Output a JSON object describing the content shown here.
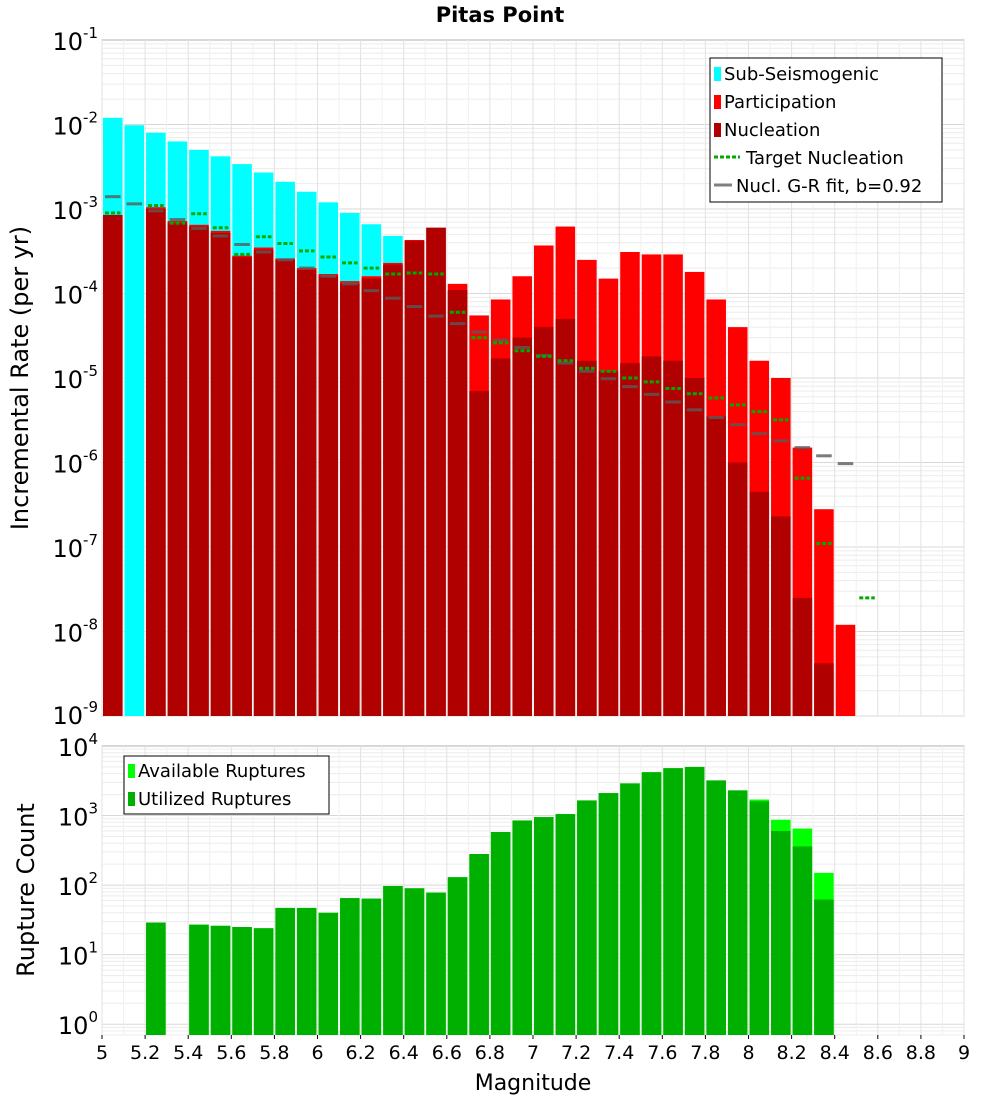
{
  "chart_data": [
    {
      "type": "bar",
      "title": "Pitas Point",
      "ylabel": "Incremental Rate (per yr)",
      "xlabel": "",
      "y_scale": "log",
      "ylim": [
        1e-09,
        0.1
      ],
      "xlim": [
        5,
        9
      ],
      "y_tick_labels": [
        {
          "base": "10",
          "exp": "-9"
        },
        {
          "base": "10",
          "exp": "-8"
        },
        {
          "base": "10",
          "exp": "-7"
        },
        {
          "base": "10",
          "exp": "-6"
        },
        {
          "base": "10",
          "exp": "-5"
        },
        {
          "base": "10",
          "exp": "-4"
        },
        {
          "base": "10",
          "exp": "-3"
        },
        {
          "base": "10",
          "exp": "-2"
        },
        {
          "base": "10",
          "exp": "-1"
        }
      ],
      "grid": true,
      "legend_position": "top-right",
      "series": [
        {
          "name": "Sub-Seismogenic",
          "color": "#00ffff",
          "x": [
            5.05,
            5.15,
            5.25,
            5.35,
            5.45,
            5.55,
            5.65,
            5.75,
            5.85,
            5.95,
            6.05,
            6.15,
            6.25,
            6.35
          ],
          "values": [
            0.012,
            0.0098,
            0.008,
            0.0063,
            0.005,
            0.0042,
            0.0034,
            0.0027,
            0.0021,
            0.0016,
            0.0012,
            0.0009,
            0.00066,
            0.00048
          ]
        },
        {
          "name": "Participation",
          "color": "#ff0000",
          "x": [
            5.05,
            5.25,
            5.35,
            5.45,
            5.55,
            5.65,
            5.75,
            5.85,
            5.95,
            6.05,
            6.15,
            6.25,
            6.35,
            6.45,
            6.55,
            6.65,
            6.75,
            6.85,
            6.95,
            7.05,
            7.15,
            7.25,
            7.35,
            7.45,
            7.55,
            7.65,
            7.75,
            7.85,
            7.95,
            8.05,
            8.15,
            8.25,
            8.35,
            8.45
          ],
          "values": [
            0.00085,
            0.00105,
            0.00072,
            0.00065,
            0.00055,
            0.00028,
            0.00035,
            0.00026,
            0.0002,
            0.00017,
            0.00014,
            0.00016,
            0.00023,
            0.00043,
            0.0006,
            0.00013,
            5.5e-05,
            8.5e-05,
            0.00016,
            0.00037,
            0.00062,
            0.00025,
            0.00015,
            0.00031,
            0.00029,
            0.00029,
            0.00018,
            8.5e-05,
            4e-05,
            1.6e-05,
            1e-05,
            1.5e-06,
            2.8e-07,
            1.2e-08
          ]
        },
        {
          "name": "Nucleation",
          "color": "#b00000",
          "x": [
            5.05,
            5.25,
            5.35,
            5.45,
            5.55,
            5.65,
            5.75,
            5.85,
            5.95,
            6.05,
            6.15,
            6.25,
            6.35,
            6.45,
            6.55,
            6.65,
            6.75,
            6.85,
            6.95,
            7.05,
            7.15,
            7.25,
            7.35,
            7.45,
            7.55,
            7.65,
            7.75,
            7.85,
            7.95,
            8.05,
            8.15,
            8.25,
            8.35
          ],
          "values": [
            0.00085,
            0.001,
            0.00068,
            0.00062,
            0.00052,
            0.00027,
            0.00033,
            0.00025,
            0.00019,
            0.00016,
            0.00013,
            0.00015,
            0.00022,
            0.00042,
            0.0006,
            0.00011,
            7e-06,
            1.7e-05,
            3e-05,
            4e-05,
            5e-05,
            1.6e-05,
            1.2e-05,
            1.5e-05,
            1.8e-05,
            1.6e-05,
            1e-05,
            3.5e-06,
            1e-06,
            4.5e-07,
            2.3e-07,
            2.5e-08,
            4.2e-09
          ]
        },
        {
          "name": "Target Nucleation",
          "color": "#00aa00",
          "style": "dotted",
          "x": [
            5.05,
            5.25,
            5.35,
            5.45,
            5.55,
            5.65,
            5.75,
            5.85,
            5.95,
            6.05,
            6.15,
            6.25,
            6.35,
            6.45,
            6.55,
            6.65,
            6.75,
            6.85,
            6.95,
            7.05,
            7.15,
            7.25,
            7.35,
            7.45,
            7.55,
            7.65,
            7.75,
            7.85,
            7.95,
            8.05,
            8.15,
            8.25,
            8.35,
            8.55
          ],
          "values": [
            0.0009,
            0.0011,
            0.00068,
            0.00088,
            0.0006,
            0.00029,
            0.00047,
            0.00039,
            0.00032,
            0.00027,
            0.00023,
            0.0002,
            0.00017,
            0.000175,
            0.00017,
            6e-05,
            3e-05,
            2.6e-05,
            2.1e-05,
            1.8e-05,
            1.6e-05,
            1.3e-05,
            1.2e-05,
            1e-05,
            9e-06,
            7.5e-06,
            6.5e-06,
            5.8e-06,
            4.8e-06,
            4e-06,
            3.2e-06,
            6.5e-07,
            1.1e-07,
            2.5e-08
          ]
        },
        {
          "name": "Nucl. G-R fit, b=0.92",
          "color": "#808080",
          "style": "steps",
          "x": [
            5.05,
            5.15,
            5.25,
            5.35,
            5.45,
            5.55,
            5.65,
            5.75,
            5.85,
            5.95,
            6.05,
            6.15,
            6.25,
            6.35,
            6.45,
            6.55,
            6.65,
            6.75,
            6.85,
            6.95,
            7.05,
            7.15,
            7.25,
            7.35,
            7.45,
            7.55,
            7.65,
            7.75,
            7.85,
            7.95,
            8.05,
            8.15,
            8.25,
            8.35,
            8.45
          ],
          "values": [
            0.0014,
            0.00115,
            0.00095,
            0.00075,
            0.00059,
            0.00048,
            0.00038,
            0.00031,
            0.00025,
            0.0002,
            0.00016,
            0.00013,
            0.000108,
            8.8e-05,
            7e-05,
            5.4e-05,
            4.4e-05,
            3.5e-05,
            2.8e-05,
            2.3e-05,
            1.85e-05,
            1.5e-05,
            1.2e-05,
            9.8e-06,
            7.9e-06,
            6.4e-06,
            5.2e-06,
            4.2e-06,
            3.4e-06,
            2.8e-06,
            2.2e-06,
            1.8e-06,
            1.5e-06,
            1.2e-06,
            9.7e-07
          ]
        }
      ]
    },
    {
      "type": "bar",
      "title": "",
      "xlabel": "Magnitude",
      "ylabel": "Rupture Count",
      "y_scale": "log",
      "ylim": [
        0.7,
        10000
      ],
      "xlim": [
        5,
        9
      ],
      "x_tick_labels": [
        "5",
        "5.2",
        "5.4",
        "5.6",
        "5.8",
        "6",
        "6.2",
        "6.4",
        "6.6",
        "6.8",
        "7",
        "7.2",
        "7.4",
        "7.6",
        "7.8",
        "8",
        "8.2",
        "8.4",
        "8.6",
        "8.8",
        "9"
      ],
      "y_tick_labels": [
        {
          "base": "10",
          "exp": "0"
        },
        {
          "base": "10",
          "exp": "1"
        },
        {
          "base": "10",
          "exp": "2"
        },
        {
          "base": "10",
          "exp": "3"
        },
        {
          "base": "10",
          "exp": "4"
        }
      ],
      "grid": true,
      "legend_position": "top-left",
      "series": [
        {
          "name": "Available Ruptures",
          "color": "#00ff00",
          "x": [
            5.25,
            5.45,
            5.55,
            5.65,
            5.75,
            5.85,
            5.95,
            6.05,
            6.15,
            6.25,
            6.35,
            6.45,
            6.55,
            6.65,
            6.75,
            6.85,
            6.95,
            7.05,
            7.15,
            7.25,
            7.35,
            7.45,
            7.55,
            7.65,
            7.75,
            7.85,
            7.95,
            8.05,
            8.15,
            8.25,
            8.35
          ],
          "values": [
            29,
            27,
            26,
            25,
            24,
            47,
            47,
            40,
            65,
            64,
            97,
            90,
            78,
            130,
            280,
            580,
            850,
            950,
            1050,
            1650,
            2100,
            2900,
            4200,
            4800,
            5000,
            3200,
            2300,
            1700,
            870,
            650,
            150
          ]
        },
        {
          "name": "Utilized Ruptures",
          "color": "#00b000",
          "x": [
            5.25,
            5.45,
            5.55,
            5.65,
            5.75,
            5.85,
            5.95,
            6.05,
            6.15,
            6.25,
            6.35,
            6.45,
            6.55,
            6.65,
            6.75,
            6.85,
            6.95,
            7.05,
            7.15,
            7.25,
            7.35,
            7.45,
            7.55,
            7.65,
            7.75,
            7.85,
            7.95,
            8.05,
            8.15,
            8.25,
            8.35
          ],
          "values": [
            29,
            27,
            26,
            25,
            24,
            47,
            47,
            40,
            65,
            64,
            97,
            90,
            78,
            130,
            280,
            580,
            850,
            950,
            1050,
            1650,
            2100,
            2900,
            4200,
            4800,
            5000,
            3200,
            2300,
            1600,
            600,
            360,
            62
          ]
        }
      ]
    }
  ]
}
